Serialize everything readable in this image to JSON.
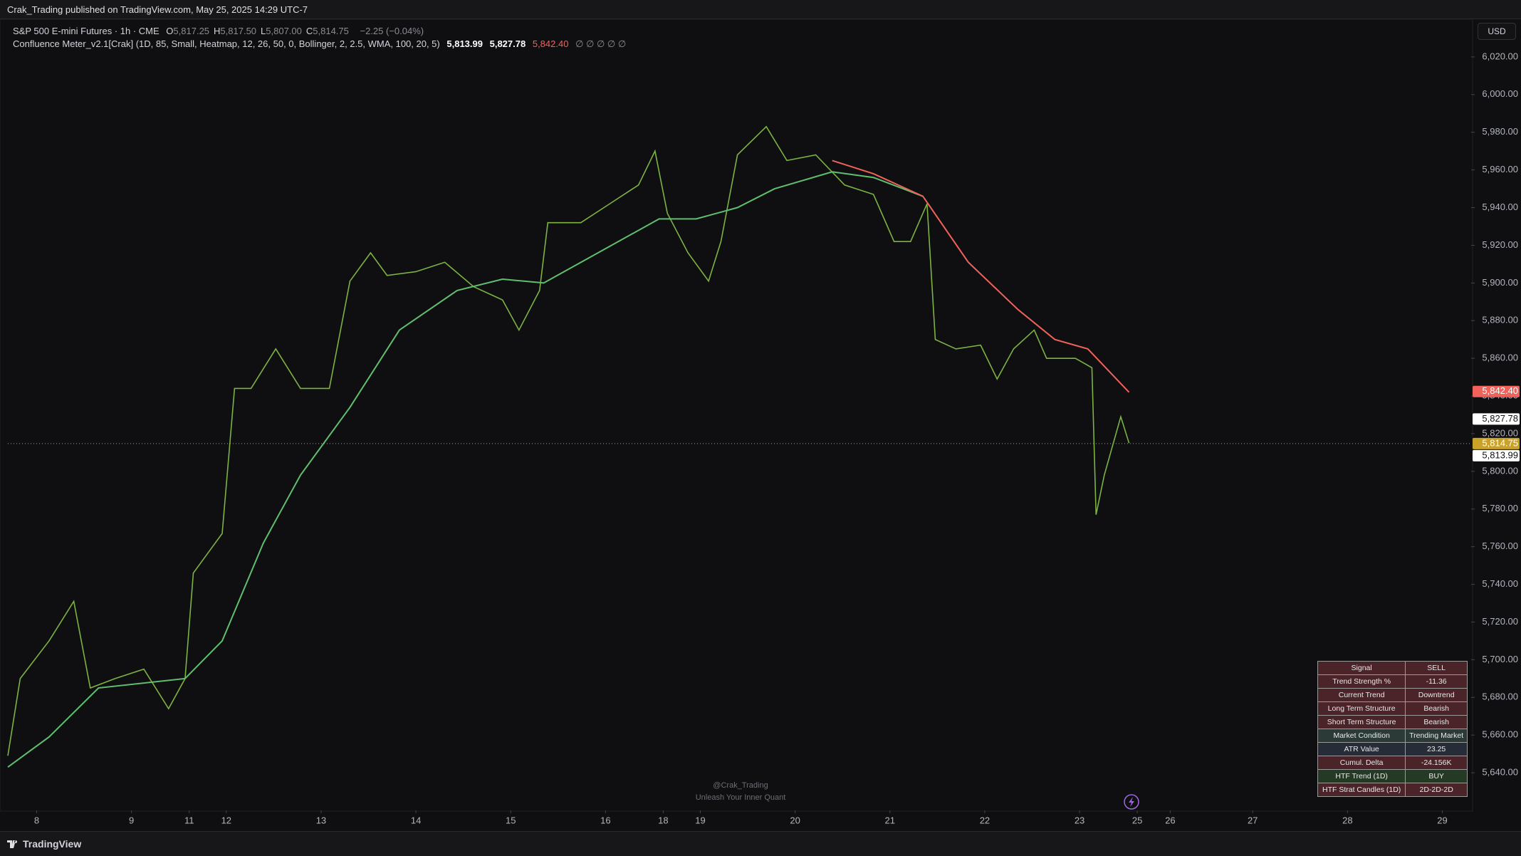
{
  "header": {
    "published": "Crak_Trading published on TradingView.com, May 25, 2025 14:29 UTC-7",
    "symbol": "S&P 500 E-mini Futures · 1h · CME",
    "ohlc": [
      {
        "label": "O",
        "value": "5,817.25"
      },
      {
        "label": "H",
        "value": "5,817.50"
      },
      {
        "label": "L",
        "value": "5,807.00"
      },
      {
        "label": "C",
        "value": "5,814.75"
      }
    ],
    "change": "−2.25 (−0.04%)",
    "indicator": "Confluence Meter_v2.1[Crak] (1D, 85, Small, Heatmap, 12, 26, 50, 0, Bollinger, 2, 2.5, WMA, 100, 20, 5)",
    "indicator_values": [
      "5,813.99",
      "5,827.78",
      "5,842.40"
    ],
    "indicator_icons": "∅ ∅ ∅ ∅ ∅",
    "currency": "USD"
  },
  "chart_data": {
    "type": "line",
    "xlim": [
      0,
      355
    ],
    "ylim": [
      5620,
      6040
    ],
    "xticks": [
      {
        "value": 7,
        "label": "8"
      },
      {
        "value": 30,
        "label": "9"
      },
      {
        "value": 44,
        "label": "11"
      },
      {
        "value": 53,
        "label": "12"
      },
      {
        "value": 76,
        "label": "13"
      },
      {
        "value": 99,
        "label": "14"
      },
      {
        "value": 122,
        "label": "15"
      },
      {
        "value": 145,
        "label": "16"
      },
      {
        "value": 159,
        "label": "18"
      },
      {
        "value": 168,
        "label": "19"
      },
      {
        "value": 191,
        "label": "20"
      },
      {
        "value": 214,
        "label": "21"
      },
      {
        "value": 237,
        "label": "22"
      },
      {
        "value": 260,
        "label": "23"
      },
      {
        "value": 274,
        "label": "25"
      },
      {
        "value": 282,
        "label": "26"
      },
      {
        "value": 302,
        "label": "27"
      },
      {
        "value": 325,
        "label": "28"
      },
      {
        "value": 348,
        "label": "29"
      }
    ],
    "yticks": [
      {
        "value": 5640,
        "label": "5,640.00"
      },
      {
        "value": 5660,
        "label": "5,660.00"
      },
      {
        "value": 5680,
        "label": "5,680.00"
      },
      {
        "value": 5700,
        "label": "5,700.00"
      },
      {
        "value": 5720,
        "label": "5,720.00"
      },
      {
        "value": 5740,
        "label": "5,740.00"
      },
      {
        "value": 5760,
        "label": "5,760.00"
      },
      {
        "value": 5780,
        "label": "5,780.00"
      },
      {
        "value": 5800,
        "label": "5,800.00"
      },
      {
        "value": 5820,
        "label": "5,820.00"
      },
      {
        "value": 5840,
        "label": "5,840.00"
      },
      {
        "value": 5860,
        "label": "5,860.00"
      },
      {
        "value": 5880,
        "label": "5,880.00"
      },
      {
        "value": 5900,
        "label": "5,900.00"
      },
      {
        "value": 5920,
        "label": "5,920.00"
      },
      {
        "value": 5940,
        "label": "5,940.00"
      },
      {
        "value": 5960,
        "label": "5,960.00"
      },
      {
        "value": 5980,
        "label": "5,980.00"
      },
      {
        "value": 6000,
        "label": "6,000.00"
      },
      {
        "value": 6020,
        "label": "6,020.00"
      }
    ],
    "series": [
      {
        "color": "#7cb342",
        "x": [
          0,
          3,
          10,
          16,
          20,
          26,
          33,
          39,
          43,
          45,
          52,
          55,
          59,
          65,
          71,
          78,
          83,
          88,
          92,
          99,
          106,
          113,
          120,
          124,
          129,
          131,
          139,
          146,
          153,
          157,
          160,
          165,
          170,
          173,
          177,
          184,
          189,
          196,
          203,
          210,
          215,
          219,
          223,
          225,
          230,
          236,
          240,
          244,
          249,
          252,
          259,
          263,
          264,
          266,
          270,
          272
        ],
        "values": [
          5649,
          5690,
          5710,
          5731,
          5685,
          5690,
          5695,
          5674,
          5690,
          5746,
          5767,
          5844,
          5844,
          5865,
          5844,
          5844,
          5901,
          5916,
          5904,
          5906,
          5911,
          5898,
          5891,
          5875,
          5896,
          5932,
          5932,
          5942,
          5952,
          5970,
          5937,
          5916,
          5901,
          5922,
          5968,
          5983,
          5965,
          5968,
          5952,
          5947,
          5922,
          5922,
          5942,
          5870,
          5865,
          5867,
          5849,
          5865,
          5875,
          5860,
          5860,
          5855,
          5777,
          5798,
          5829,
          5815
        ]
      },
      {
        "color": "#5fbf6f",
        "x": [
          0,
          10,
          22,
          43,
          52,
          62,
          71,
          83,
          95,
          109,
          120,
          130,
          144,
          158,
          167,
          177,
          186,
          200,
          210,
          222
        ],
        "values": [
          5643,
          5659,
          5685,
          5690,
          5710,
          5762,
          5798,
          5834,
          5875,
          5896,
          5902,
          5900,
          5917,
          5934,
          5934,
          5940,
          5950,
          5959,
          5956,
          5946
        ]
      },
      {
        "color": "#f0625a",
        "x": [
          200,
          210,
          222,
          233,
          245,
          254,
          262,
          272
        ],
        "values": [
          5965,
          5958,
          5946,
          5911,
          5886,
          5870,
          5865,
          5842
        ]
      }
    ],
    "price_tags": [
      {
        "value": 5842.4,
        "label": "5,842.40",
        "color": "#f0625a"
      },
      {
        "value": 5827.78,
        "label": "5,827.78",
        "color": "#ffffff"
      },
      {
        "value": 5814.75,
        "label": "5,814.75",
        "color": "#c9a227"
      },
      {
        "value": 5813.99,
        "label": "5,813.99",
        "color": "#ffffff"
      }
    ],
    "watermark": [
      "@Crak_Trading",
      "Unleash Your Inner Quant"
    ]
  },
  "table": {
    "rows": [
      [
        "Signal",
        "SELL"
      ],
      [
        "Trend Strength %",
        "-11.36"
      ],
      [
        "Current Trend",
        "Downtrend"
      ],
      [
        "Long Term Structure",
        "Bearish"
      ],
      [
        "Short Term Structure",
        "Bearish"
      ],
      [
        "Market Condition",
        "Trending Market"
      ],
      [
        "ATR Value",
        "23.25"
      ],
      [
        "Cumul. Delta",
        "-24.156K"
      ],
      [
        "HTF Trend (1D)",
        "BUY"
      ],
      [
        "HTF Strat Candles (1D)",
        "2D-2D-2D"
      ]
    ]
  },
  "footer": {
    "brand": "TradingView"
  }
}
